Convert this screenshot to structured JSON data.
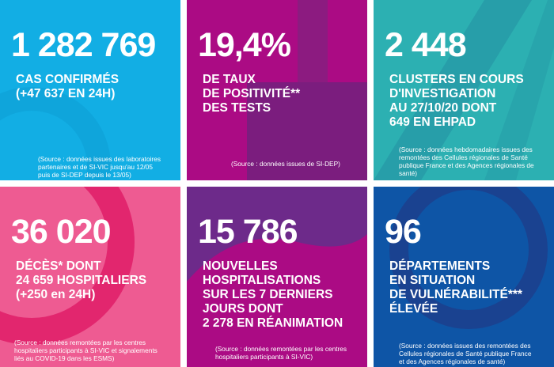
{
  "tiles": [
    {
      "number": "1 282 769",
      "label": [
        "CAS CONFIRMÉS",
        "(+47 637 EN 24H)"
      ],
      "source": [
        "(Source : données issues des laboratoires",
        "partenaires et de SI-VIC jusqu'au 12/05",
        "puis de SI-DEP depuis le 13/05)"
      ],
      "color": "#12aee4"
    },
    {
      "number": "19,4%",
      "label": [
        "DE TAUX",
        "DE POSITIVITÉ**",
        "DES TESTS"
      ],
      "source": [
        "(Source : données issues de SI-DEP)"
      ],
      "color": "#ab0b84"
    },
    {
      "number": "2 448",
      "label": [
        "CLUSTERS EN COURS",
        "D'INVESTIGATION",
        "AU 27/10/20 DONT",
        "649 EN EHPAD"
      ],
      "source": [
        "(Source : données hebdomadaires issues des",
        "remontées des Cellules régionales de Santé",
        "publique France et des Agences régionales de",
        "santé)"
      ],
      "color": "#2cb0b2"
    },
    {
      "number": "36 020",
      "label": [
        "DÉCÈS* DONT",
        "24 659 HOSPITALIERS",
        "(+250 en 24H)"
      ],
      "source": [
        "(Source : données remontées par les centres",
        "hospitaliers participants à SI-VIC et signalements",
        "liés au COVID-19 dans les ESMS)"
      ],
      "color": "#ee5b92"
    },
    {
      "number": "15 786",
      "label": [
        "NOUVELLES",
        "HOSPITALISATIONS",
        "SUR LES 7 DERNIERS",
        "JOURS DONT",
        "2 278 EN RÉANIMATION"
      ],
      "source": [
        "(Source : données remontées par les centres",
        "hospitaliers participants à SI-VIC)"
      ],
      "color": "#6d2a8a"
    },
    {
      "number": "96",
      "label": [
        "DÉPARTEMENTS",
        "EN SITUATION",
        "DE VULNÉRABILITÉ***",
        "ÉLEVÉE"
      ],
      "source": [
        "(Source : données issues des remontées des",
        "Cellules régionales de Santé publique France",
        "et des Agences régionales de santé)"
      ],
      "color": "#0e55a6"
    }
  ]
}
